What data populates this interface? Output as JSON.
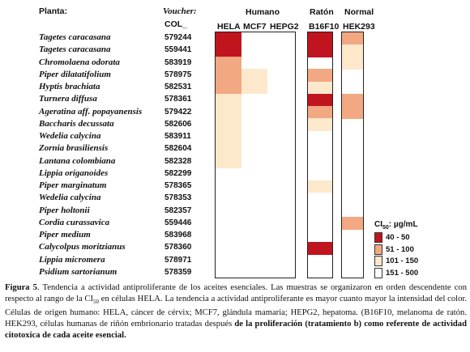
{
  "headers": {
    "planta": "Planta:",
    "voucher": "Voucher:",
    "col": "COL_",
    "humano": "Humano",
    "raton": "Ratón",
    "normal": "Normal",
    "hela": "HELA",
    "mcf7": "MCF7",
    "hepg2": "HEPG2",
    "b16f10": "B16F10",
    "hek293": "HEK293"
  },
  "colors": {
    "c40_50": "#c0141f",
    "c51_100": "#f2a882",
    "c101_150": "#fde8cc",
    "c151_500": "#ffffff"
  },
  "rows": [
    {
      "plant": "Tagetes caracasana",
      "voucher": "579244",
      "hela": "c40_50",
      "mcf7": "",
      "hepg2": "",
      "b16f10": "c40_50",
      "hek293": "c51_100"
    },
    {
      "plant": "Tagetes caracasana",
      "voucher": "559441",
      "hela": "c40_50",
      "mcf7": "",
      "hepg2": "",
      "b16f10": "c40_50",
      "hek293": "c101_150"
    },
    {
      "plant": "Chromolaena odorata",
      "voucher": "583919",
      "hela": "c51_100",
      "mcf7": "",
      "hepg2": "",
      "b16f10": "",
      "hek293": "c101_150"
    },
    {
      "plant": "Piper dilatatifolium",
      "voucher": "578975",
      "hela": "c51_100",
      "mcf7": "c101_150",
      "hepg2": "",
      "b16f10": "c51_100",
      "hek293": ""
    },
    {
      "plant": "Hyptis brachiata",
      "voucher": "582531",
      "hela": "c51_100",
      "mcf7": "c101_150",
      "hepg2": "",
      "b16f10": "c101_150",
      "hek293": ""
    },
    {
      "plant": "Turnera diffusa",
      "voucher": "578361",
      "hela": "c101_150",
      "mcf7": "",
      "hepg2": "",
      "b16f10": "c40_50",
      "hek293": "c51_100"
    },
    {
      "plant": "Ageratina aff. popayanensis",
      "voucher": "579422",
      "hela": "c101_150",
      "mcf7": "",
      "hepg2": "",
      "b16f10": "c51_100",
      "hek293": "c51_100"
    },
    {
      "plant": "Baccharis decussata",
      "voucher": "582606",
      "hela": "c101_150",
      "mcf7": "",
      "hepg2": "",
      "b16f10": "c101_150",
      "hek293": ""
    },
    {
      "plant": "Wedelia calycina",
      "voucher": "583911",
      "hela": "c101_150",
      "mcf7": "",
      "hepg2": "",
      "b16f10": "",
      "hek293": ""
    },
    {
      "plant": "Zornia brasiliensis",
      "voucher": "582604",
      "hela": "c101_150",
      "mcf7": "",
      "hepg2": "",
      "b16f10": "",
      "hek293": ""
    },
    {
      "plant": "Lantana colombiana",
      "voucher": "582328",
      "hela": "c101_150",
      "mcf7": "",
      "hepg2": "",
      "b16f10": "",
      "hek293": ""
    },
    {
      "plant": "Lippia origanoides",
      "voucher": "582299",
      "hela": "",
      "mcf7": "",
      "hepg2": "",
      "b16f10": "",
      "hek293": ""
    },
    {
      "plant": "Piper marginatum",
      "voucher": "578365",
      "hela": "",
      "mcf7": "",
      "hepg2": "",
      "b16f10": "c101_150",
      "hek293": ""
    },
    {
      "plant": "Wedelia calycina",
      "voucher": "578353",
      "hela": "",
      "mcf7": "",
      "hepg2": "",
      "b16f10": "",
      "hek293": ""
    },
    {
      "plant": "Piper holtonii",
      "voucher": "582357",
      "hela": "",
      "mcf7": "",
      "hepg2": "",
      "b16f10": "",
      "hek293": ""
    },
    {
      "plant": "Cordia curassavica",
      "voucher": "559446",
      "hela": "",
      "mcf7": "",
      "hepg2": "",
      "b16f10": "",
      "hek293": "c51_100"
    },
    {
      "plant": "Piper medium",
      "voucher": "583968",
      "hela": "",
      "mcf7": "",
      "hepg2": "",
      "b16f10": "",
      "hek293": ""
    },
    {
      "plant": "Calycolpus moritzianus",
      "voucher": "578360",
      "hela": "",
      "mcf7": "",
      "hepg2": "",
      "b16f10": "c40_50",
      "hek293": ""
    },
    {
      "plant": "Lippia micromera",
      "voucher": "578971",
      "hela": "",
      "mcf7": "",
      "hepg2": "",
      "b16f10": "",
      "hek293": ""
    },
    {
      "plant": "Psidium sartorianum",
      "voucher": "578359",
      "hela": "",
      "mcf7": "",
      "hepg2": "",
      "b16f10": "",
      "hek293": ""
    }
  ],
  "legend": {
    "title_prefix": "CI",
    "title_sub": "50",
    "title_suffix": ": µg/mL",
    "items": [
      {
        "label": "40 - 50",
        "color_key": "c40_50"
      },
      {
        "label": "51 - 100",
        "color_key": "c51_100"
      },
      {
        "label": "101 - 150",
        "color_key": "c101_150"
      },
      {
        "label": "151 - 500",
        "color_key": "c151_500"
      }
    ]
  },
  "caption": {
    "fig_label": "Figura 5",
    "part1": ". Tendencia a actividad antiproliferante de los aceites esenciales. Las muestras se organizaron en orden descendente con respecto al rango de la CI",
    "sub": "50",
    "part2": " en células HELA. La tendencia a actividad antiproliferante es mayor cuanto mayor la intensidad del color. Células de origen humano: HELA, cáncer de cérvix; MCF7, glándula mamaria; HEPG2, hepatoma. (B16F10, melanoma de ratón. HEK293, células humanas de riñón embrionario tratadas después ",
    "bold_tail": "de la proliferación (tratamiento b) como referente de actividad citotoxica de cada aceite esencial."
  }
}
